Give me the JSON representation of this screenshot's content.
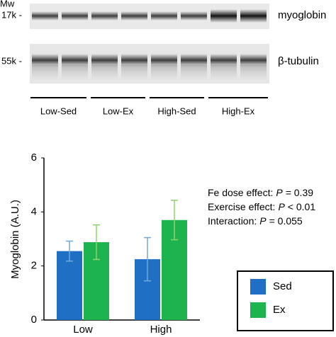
{
  "blot": {
    "mw": "Mw",
    "markers": [
      "17k -",
      "55k -"
    ],
    "proteins": [
      "myoglobin",
      "β-tubulin"
    ],
    "groups": [
      "Low-Sed",
      "Low-Ex",
      "High-Sed",
      "High-Ex"
    ]
  },
  "chart_data": {
    "type": "bar",
    "y_label": "Myoglobin (A.U.)",
    "categories": [
      "Low",
      "High"
    ],
    "series": [
      {
        "name": "Sed",
        "color": "#1f6fc5",
        "error_color": "#6fa8dc",
        "values": [
          2.55,
          2.25
        ],
        "errors": [
          0.37,
          0.8
        ]
      },
      {
        "name": "Ex",
        "color": "#1db34f",
        "error_color": "#8fd36a",
        "values": [
          2.88,
          3.7
        ],
        "errors": [
          0.64,
          0.73
        ]
      }
    ],
    "ylim": [
      0,
      6
    ],
    "yticks": [
      0,
      2,
      4,
      6
    ],
    "annotations": [
      {
        "label": "Fe dose effect:",
        "stat": "P",
        "relation": "= 0.39"
      },
      {
        "label": "Exercise effect:",
        "stat": "P",
        "relation": "< 0.01"
      },
      {
        "label": "Interaction:",
        "stat": "P",
        "relation": "= 0.055"
      }
    ],
    "legend": "right"
  }
}
